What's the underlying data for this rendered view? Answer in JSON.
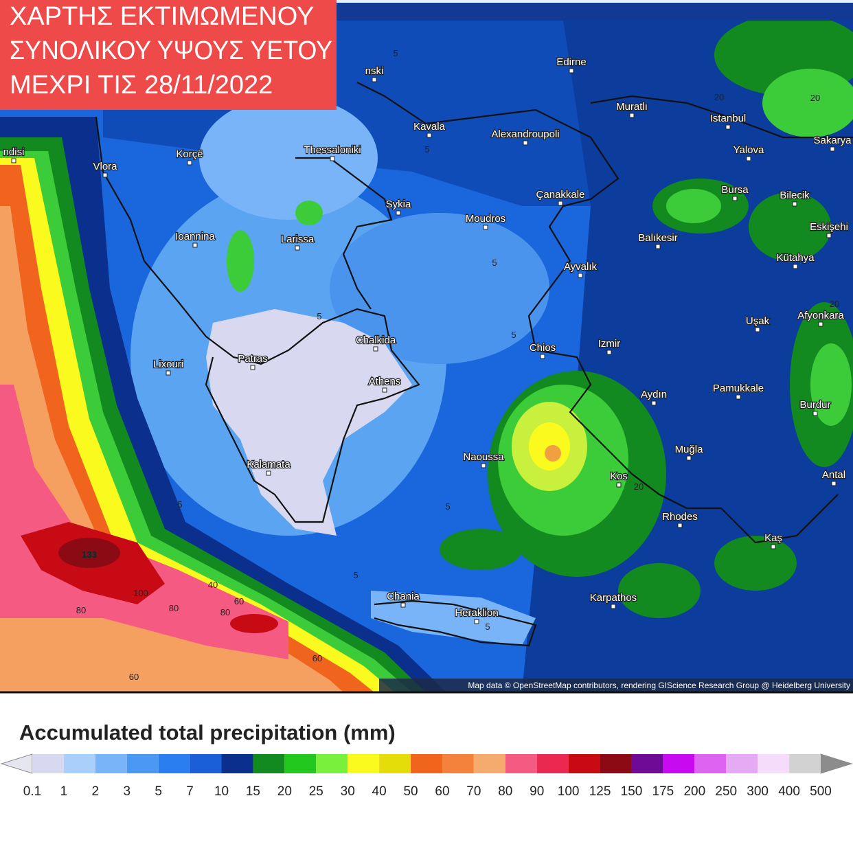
{
  "title_lines": [
    "ΧΑΡΤΗΣ ΕΚΤΙΜΩΜΕΝΟΥ",
    "ΣΥΝΟΛΙΚΟΥ ΥΨΟΥΣ ΥΕΤΟΥ",
    "ΜΕΧΡΙ ΤΙΣ 28/11/2022"
  ],
  "places": [
    "Edirne",
    "Muratlı",
    "Istanbul",
    "Kavala",
    "Alexandroupoli",
    "Thessaloniki",
    "Korçë",
    "Vlora",
    "Yalova",
    "Sakarya",
    "Bursa",
    "Bilecik",
    "Çanakkale",
    "Sykia",
    "Moudros",
    "Eskişehi",
    "Ioannina",
    "Larissa",
    "Balıkesir",
    "Kütahya",
    "Ayvalık",
    "Uşak",
    "Afyonkara",
    "Chalkida",
    "Chios",
    "Izmir",
    "Patras",
    "Lixouri",
    "Athens",
    "Aydın",
    "Pamukkale",
    "Burdur",
    "Muğla",
    "Naoussa",
    "Kalamata",
    "Kos",
    "Antal",
    "Rhodes",
    "Kaş",
    "Chania",
    "Karpathos",
    "Heraklion",
    "nski",
    "ndisi"
  ],
  "contour_labels": [
    "5",
    "5",
    "5",
    "5",
    "5",
    "5",
    "5",
    "5",
    "5",
    "20",
    "20",
    "20",
    "20",
    "133",
    "100",
    "80",
    "80",
    "80",
    "60",
    "60",
    "60",
    "40"
  ],
  "attribution": "Map data © OpenStreetMap contributors, rendering GIScience Research Group @ Heidelberg University",
  "legend": {
    "title": "Accumulated total precipitation (mm)",
    "ticks": [
      0.1,
      1,
      2,
      3,
      5,
      7,
      10,
      15,
      20,
      25,
      30,
      40,
      50,
      60,
      70,
      80,
      90,
      100,
      125,
      150,
      175,
      200,
      250,
      300,
      400,
      500
    ],
    "colors": [
      "#d8d8f0",
      "#a8d0fa",
      "#78b4f7",
      "#4a98f2",
      "#2a7ef0",
      "#1a5ed8",
      "#0a2f8c",
      "#128a20",
      "#22c81e",
      "#78f03c",
      "#fafa1e",
      "#e6dc0a",
      "#f0641e",
      "#f5823c",
      "#f5aa6e",
      "#f55a82",
      "#eb2850",
      "#c80a14",
      "#8c0a14",
      "#6e0a96",
      "#c80af0",
      "#dc64f0",
      "#e6aaf5",
      "#f5dcfa",
      "#d2d2d2"
    ],
    "under_color": "#e6e6f0",
    "over_color": "#8c8c8c"
  }
}
